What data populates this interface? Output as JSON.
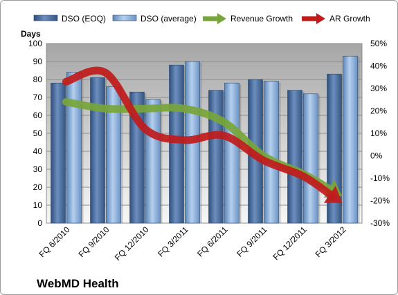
{
  "chart_data": {
    "type": "bar",
    "categories": [
      "FQ 6/2010",
      "FQ 9/2010",
      "FQ 12/2010",
      "FQ 3/2011",
      "FQ 6/2011",
      "FQ 9/2011",
      "FQ 12/2011",
      "FQ 3/2012"
    ],
    "series": [
      {
        "name": "DSO (EOQ)",
        "type": "bar",
        "axis": "left",
        "color": "#4a6fa5",
        "values": [
          78,
          81,
          73,
          88,
          74,
          80,
          74,
          83
        ]
      },
      {
        "name": "DSO (average)",
        "type": "bar",
        "axis": "left",
        "color": "#8fb4dc",
        "values": [
          84,
          76,
          69,
          90,
          78,
          79,
          72,
          93
        ]
      },
      {
        "name": "Revenue Growth",
        "type": "line",
        "axis": "right",
        "color": "#77a53a",
        "values": [
          24,
          21,
          21,
          21,
          15,
          0,
          -8,
          -18
        ]
      },
      {
        "name": "AR Growth",
        "type": "line",
        "axis": "right",
        "color": "#c01b1b",
        "values": [
          33,
          37,
          12,
          7,
          9,
          -2,
          -9,
          -21
        ]
      }
    ],
    "ylabel": "Days",
    "ylim": [
      0,
      100
    ],
    "yticks": [
      "0",
      "10",
      "20",
      "30",
      "40",
      "50",
      "60",
      "70",
      "80",
      "90",
      "100"
    ],
    "y2lim": [
      -30,
      50
    ],
    "y2ticks": [
      "-30%",
      "-20%",
      "-10%",
      "0%",
      "10%",
      "20%",
      "30%",
      "40%",
      "50%"
    ],
    "legend_position": "top",
    "grid": true,
    "footer": "WebMD Health"
  }
}
